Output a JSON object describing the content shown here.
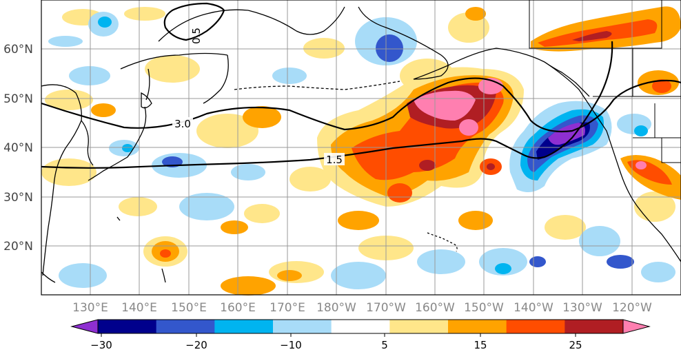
{
  "map": {
    "latitude_labels": [
      "60°N",
      "50°N",
      "40°N",
      "30°N",
      "20°N"
    ],
    "longitude_labels": [
      "130°E",
      "140°E",
      "150°E",
      "160°E",
      "170°E",
      "180°W",
      "170°W",
      "160°W",
      "150°W",
      "140°W",
      "130°W",
      "120°W"
    ],
    "contour_labels": [
      "3.0",
      "1.5",
      "0.5"
    ],
    "colorbar": {
      "tick_labels": [
        "−30",
        "−20",
        "−10",
        "5",
        "15",
        "25"
      ],
      "bin_colors": [
        "#8e2fd1",
        "#00008c",
        "#3357cc",
        "#00b4f0",
        "#a8dcf8",
        "#ffffff",
        "#ffe68a",
        "#ffa300",
        "#ff4d00",
        "#b01e23",
        "#ff7fb0"
      ],
      "extend": "both"
    },
    "colors": {
      "land_outline": "#000000",
      "grid": "#999999",
      "contour": "#000000"
    }
  }
}
